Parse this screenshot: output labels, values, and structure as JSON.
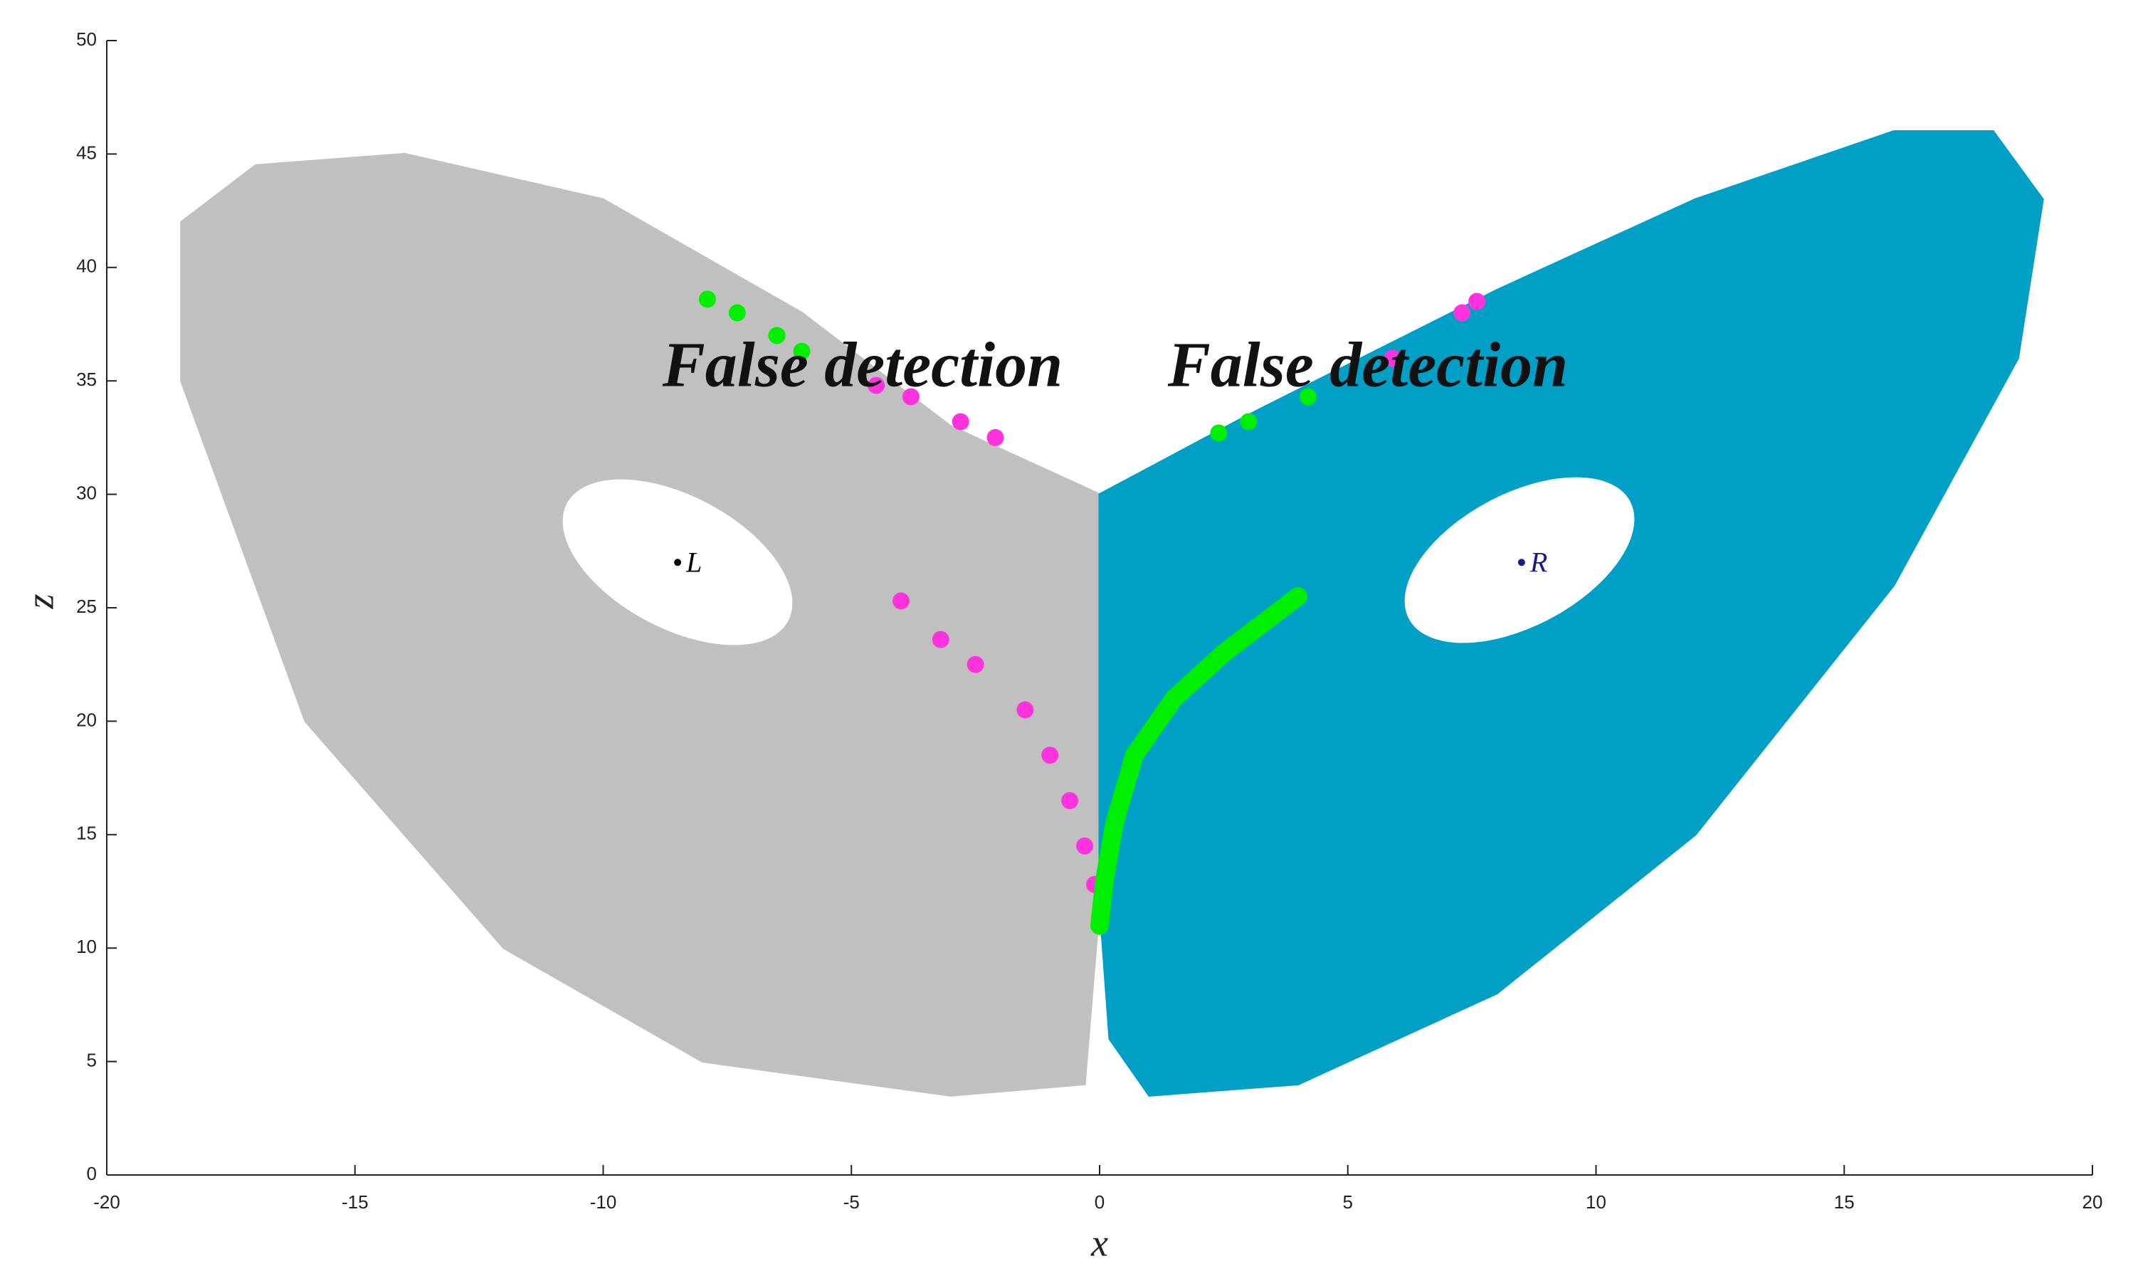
{
  "chart_data": {
    "type": "scatter",
    "xlabel": "x",
    "ylabel": "z",
    "xlim": [
      -20,
      20
    ],
    "ylim": [
      0,
      50
    ],
    "xticks": [
      -20,
      -15,
      -10,
      -5,
      0,
      5,
      10,
      15,
      20
    ],
    "yticks": [
      0,
      5,
      10,
      15,
      20,
      25,
      30,
      35,
      40,
      45,
      50
    ],
    "annotations": [
      "False detection",
      "False detection"
    ],
    "series": [
      {
        "type": "area",
        "color": "#c0c0c0",
        "x": [
          0,
          -3,
          -6,
          -10,
          -14,
          -17,
          -18.5,
          -18.5,
          -16,
          -12,
          -8,
          -3,
          -0.3,
          0
        ],
        "values": [
          30,
          33,
          38,
          43,
          45,
          44.5,
          42,
          35,
          20,
          10,
          5,
          3.5,
          4,
          12
        ]
      },
      {
        "type": "area",
        "color": "#00a0c6",
        "x": [
          0,
          3,
          8,
          12,
          16,
          18,
          19,
          18.5,
          16,
          12,
          8,
          4,
          1,
          0.2,
          0
        ],
        "values": [
          30,
          33.5,
          39,
          43,
          46,
          46,
          43,
          36,
          26,
          15,
          8,
          4,
          3.5,
          6,
          12
        ]
      },
      {
        "type": "scatter",
        "color": "#ff33dd",
        "x": [
          -4.5,
          -3.8,
          -2.8,
          -2.1,
          5.9,
          7.3,
          7.6,
          -4,
          -3.2,
          -2.5,
          -1.5,
          -1,
          -0.6,
          -0.3,
          -0.1
        ],
        "values": [
          34.8,
          34.3,
          33.2,
          32.5,
          36,
          38,
          38.5,
          25.3,
          23.6,
          22.5,
          20.5,
          18.5,
          16.5,
          14.5,
          12.8
        ]
      },
      {
        "type": "line",
        "color": "#00ee00",
        "x": [
          0,
          0.1,
          0.3,
          0.7,
          1.5,
          2.5,
          4
        ],
        "values": [
          11,
          13,
          15.5,
          18.5,
          21,
          23,
          25.5
        ]
      },
      {
        "type": "scatter",
        "color": "#00ee00",
        "x": [
          -7.9,
          -7.3,
          -6.5,
          -6,
          2.4,
          3,
          4.2,
          0,
          4
        ],
        "values": [
          38.6,
          38,
          37,
          36.3,
          32.7,
          33.2,
          34.3,
          11,
          25.5
        ]
      },
      {
        "type": "point",
        "color": "#000000",
        "x": [
          -8.5
        ],
        "values": [
          27
        ],
        "labels": [
          "L"
        ]
      },
      {
        "type": "point",
        "color": "#1a1a8c",
        "x": [
          8.5
        ],
        "values": [
          27
        ],
        "labels": [
          "R"
        ]
      }
    ]
  }
}
